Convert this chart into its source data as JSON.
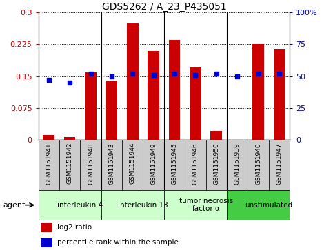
{
  "title": "GDS5262 / A_23_P435051",
  "samples": [
    "GSM1151941",
    "GSM1151942",
    "GSM1151948",
    "GSM1151943",
    "GSM1151944",
    "GSM1151949",
    "GSM1151945",
    "GSM1151946",
    "GSM1151950",
    "GSM1151939",
    "GSM1151940",
    "GSM1151947"
  ],
  "log2_ratio": [
    0.012,
    0.007,
    0.16,
    0.14,
    0.275,
    0.21,
    0.235,
    0.17,
    0.022,
    0.001,
    0.225,
    0.215
  ],
  "percentile": [
    47,
    45,
    52,
    50,
    52,
    51,
    52,
    51,
    52,
    50,
    52,
    52
  ],
  "bar_color": "#cc0000",
  "square_color": "#0000cc",
  "ylim_left": [
    0,
    0.3
  ],
  "ylim_right": [
    0,
    100
  ],
  "yticks_left": [
    0,
    0.075,
    0.15,
    0.225,
    0.3
  ],
  "yticks_right": [
    0,
    25,
    50,
    75,
    100
  ],
  "ytick_labels_left": [
    "0",
    "0.075",
    "0.15",
    "0.225",
    "0.3"
  ],
  "ytick_labels_right": [
    "0",
    "25",
    "50",
    "75",
    "100%"
  ],
  "groups": [
    {
      "label": "interleukin 4",
      "start": 0,
      "end": 3,
      "color": "#ccffcc"
    },
    {
      "label": "interleukin 13",
      "start": 3,
      "end": 6,
      "color": "#ccffcc"
    },
    {
      "label": "tumor necrosis\nfactor-α",
      "start": 6,
      "end": 9,
      "color": "#ccffcc"
    },
    {
      "label": "unstimulated",
      "start": 9,
      "end": 12,
      "color": "#44cc44"
    }
  ],
  "agent_label": "agent",
  "legend_bar_label": "log2 ratio",
  "legend_sq_label": "percentile rank within the sample",
  "bar_color_hex": "#cc0000",
  "square_color_hex": "#0000cc",
  "plot_bg": "#ffffff",
  "grid_color": "#000000",
  "sample_box_color": "#cccccc",
  "separator_color": "#000000"
}
